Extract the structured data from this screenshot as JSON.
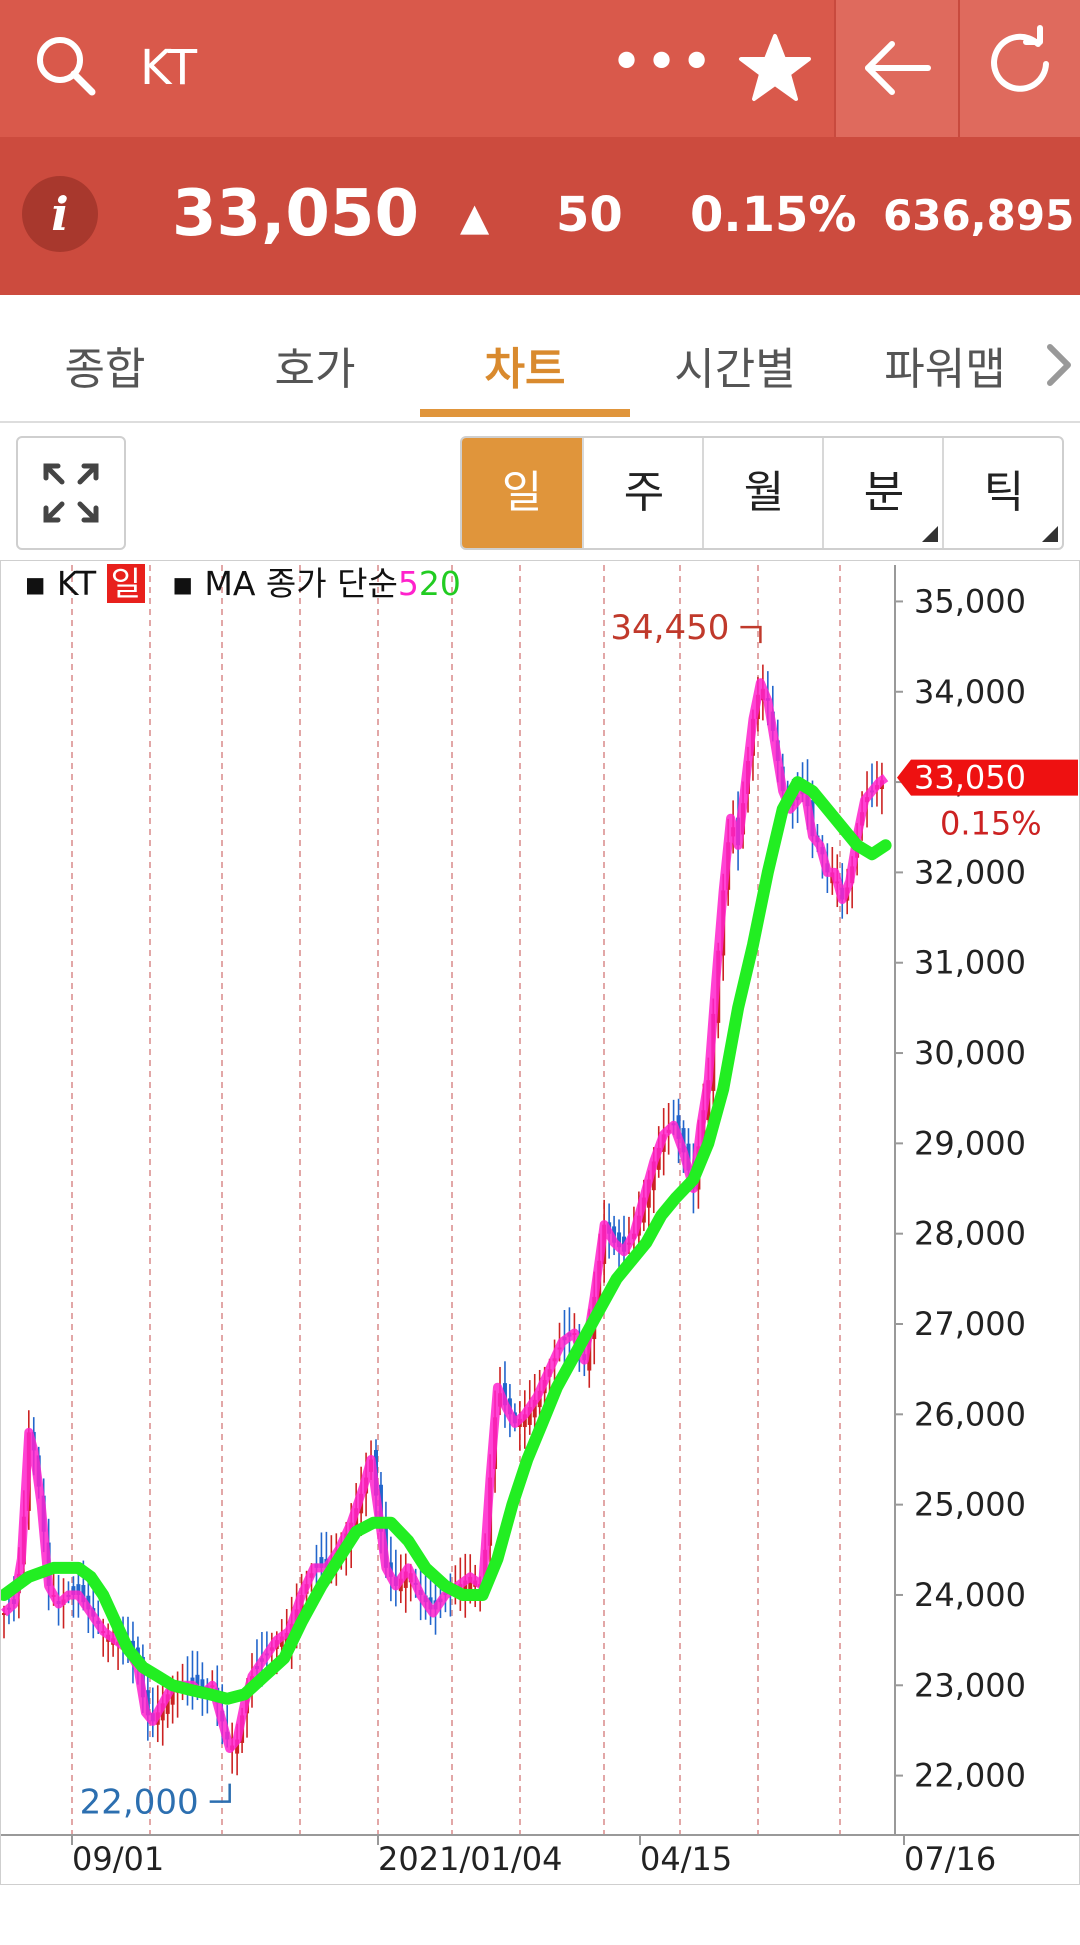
{
  "header": {
    "title": "KT",
    "more_icon": "more-icon",
    "star_icon": "star-icon",
    "back_icon": "back-arrow-icon",
    "refresh_icon": "refresh-icon"
  },
  "quote": {
    "info_label": "i",
    "price": "33,050",
    "direction": "▲",
    "change": "50",
    "change_pct": "0.15%",
    "volume": "636,895"
  },
  "tabs": [
    "종합",
    "호가",
    "차트",
    "시간별",
    "파워맵"
  ],
  "active_tab": "차트",
  "periods": [
    "일",
    "주",
    "월",
    "분",
    "틱"
  ],
  "active_period": "일",
  "legend": {
    "symbol": "KT",
    "period_badge": "일",
    "ma_label": "MA 종가 단순",
    "ma5": "5",
    "ma20": "20"
  },
  "colors": {
    "header_bg": "#d9594b",
    "quote_bg": "#cc4b3e",
    "accent": "#e0953b",
    "ma5": "#ff22cc",
    "ma20": "#22ee22",
    "up": "#cc2222",
    "down": "#2266cc"
  },
  "chart_data": {
    "type": "candlestick",
    "y_ticks": [
      22000,
      23000,
      24000,
      25000,
      26000,
      27000,
      28000,
      29000,
      30000,
      31000,
      32000,
      33000,
      34000,
      35000
    ],
    "y_tick_labels": [
      "22,000",
      "23,000",
      "24,000",
      "25,000",
      "26,000",
      "27,000",
      "28,000",
      "29,000",
      "30,000",
      "31,000",
      "32,000",
      "33,000",
      "34,000",
      "35,000"
    ],
    "x_tick_labels": [
      "09/01",
      "2021/01/04",
      "04/15",
      "07/16"
    ],
    "ylim": [
      21600,
      35400
    ],
    "current_price": 33050,
    "current_price_label": "33,050",
    "current_change_label": "0.15%",
    "high_marker": {
      "value": 34450,
      "label": "34,450"
    },
    "low_marker": {
      "value": 22000,
      "label": "22,000"
    },
    "grid": "vertical dashed",
    "close_path": [
      [
        0,
        23800
      ],
      [
        8,
        23900
      ],
      [
        14,
        24400
      ],
      [
        20,
        25800
      ],
      [
        24,
        25600
      ],
      [
        30,
        25000
      ],
      [
        36,
        24100
      ],
      [
        44,
        23900
      ],
      [
        52,
        24000
      ],
      [
        60,
        24000
      ],
      [
        70,
        23800
      ],
      [
        80,
        23600
      ],
      [
        90,
        23500
      ],
      [
        100,
        23400
      ],
      [
        108,
        23200
      ],
      [
        114,
        22700
      ],
      [
        120,
        22600
      ],
      [
        128,
        22800
      ],
      [
        136,
        23000
      ],
      [
        144,
        23000
      ],
      [
        152,
        23000
      ],
      [
        160,
        22900
      ],
      [
        168,
        23000
      ],
      [
        176,
        22600
      ],
      [
        182,
        22300
      ],
      [
        188,
        22400
      ],
      [
        194,
        22800
      ],
      [
        200,
        23100
      ],
      [
        210,
        23300
      ],
      [
        220,
        23500
      ],
      [
        230,
        23600
      ],
      [
        240,
        24000
      ],
      [
        250,
        24300
      ],
      [
        260,
        24300
      ],
      [
        270,
        24500
      ],
      [
        280,
        24800
      ],
      [
        290,
        25200
      ],
      [
        296,
        25500
      ],
      [
        302,
        24900
      ],
      [
        308,
        24300
      ],
      [
        316,
        24100
      ],
      [
        326,
        24300
      ],
      [
        336,
        24000
      ],
      [
        346,
        23800
      ],
      [
        356,
        24000
      ],
      [
        366,
        24100
      ],
      [
        376,
        24200
      ],
      [
        386,
        24100
      ],
      [
        392,
        25300
      ],
      [
        398,
        26300
      ],
      [
        404,
        26100
      ],
      [
        412,
        25900
      ],
      [
        420,
        26000
      ],
      [
        430,
        26200
      ],
      [
        440,
        26500
      ],
      [
        450,
        26800
      ],
      [
        460,
        26900
      ],
      [
        468,
        26600
      ],
      [
        476,
        27300
      ],
      [
        484,
        28100
      ],
      [
        492,
        27900
      ],
      [
        500,
        27800
      ],
      [
        508,
        28000
      ],
      [
        516,
        28400
      ],
      [
        524,
        28800
      ],
      [
        532,
        29100
      ],
      [
        540,
        29200
      ],
      [
        548,
        28900
      ],
      [
        556,
        28500
      ],
      [
        562,
        29200
      ],
      [
        568,
        29700
      ],
      [
        574,
        30800
      ],
      [
        580,
        31800
      ],
      [
        586,
        32600
      ],
      [
        592,
        32300
      ],
      [
        598,
        33000
      ],
      [
        604,
        33700
      ],
      [
        610,
        34100
      ],
      [
        616,
        33900
      ],
      [
        622,
        33400
      ],
      [
        628,
        32900
      ],
      [
        634,
        32700
      ],
      [
        640,
        32800
      ],
      [
        646,
        32900
      ],
      [
        652,
        32400
      ],
      [
        658,
        32300
      ],
      [
        664,
        32000
      ],
      [
        670,
        32000
      ],
      [
        676,
        31700
      ],
      [
        682,
        31900
      ],
      [
        688,
        32400
      ],
      [
        694,
        32800
      ],
      [
        700,
        32900
      ],
      [
        706,
        33000
      ],
      [
        711,
        33050
      ]
    ],
    "ma20_path": [
      [
        0,
        24000
      ],
      [
        20,
        24200
      ],
      [
        40,
        24300
      ],
      [
        60,
        24300
      ],
      [
        70,
        24200
      ],
      [
        80,
        24000
      ],
      [
        90,
        23700
      ],
      [
        100,
        23400
      ],
      [
        112,
        23200
      ],
      [
        124,
        23100
      ],
      [
        136,
        23000
      ],
      [
        150,
        22950
      ],
      [
        166,
        22900
      ],
      [
        180,
        22850
      ],
      [
        194,
        22900
      ],
      [
        210,
        23100
      ],
      [
        226,
        23300
      ],
      [
        240,
        23700
      ],
      [
        256,
        24100
      ],
      [
        270,
        24400
      ],
      [
        284,
        24700
      ],
      [
        298,
        24800
      ],
      [
        312,
        24800
      ],
      [
        326,
        24600
      ],
      [
        340,
        24300
      ],
      [
        356,
        24100
      ],
      [
        370,
        24000
      ],
      [
        386,
        24000
      ],
      [
        398,
        24400
      ],
      [
        410,
        25000
      ],
      [
        422,
        25500
      ],
      [
        434,
        25900
      ],
      [
        446,
        26300
      ],
      [
        458,
        26600
      ],
      [
        470,
        26900
      ],
      [
        482,
        27200
      ],
      [
        494,
        27500
      ],
      [
        506,
        27700
      ],
      [
        518,
        27900
      ],
      [
        530,
        28200
      ],
      [
        542,
        28400
      ],
      [
        556,
        28600
      ],
      [
        568,
        29000
      ],
      [
        580,
        29600
      ],
      [
        592,
        30500
      ],
      [
        604,
        31200
      ],
      [
        616,
        32000
      ],
      [
        628,
        32700
      ],
      [
        640,
        33000
      ],
      [
        652,
        32900
      ],
      [
        664,
        32700
      ],
      [
        676,
        32500
      ],
      [
        688,
        32300
      ],
      [
        700,
        32200
      ],
      [
        711,
        32300
      ]
    ]
  }
}
